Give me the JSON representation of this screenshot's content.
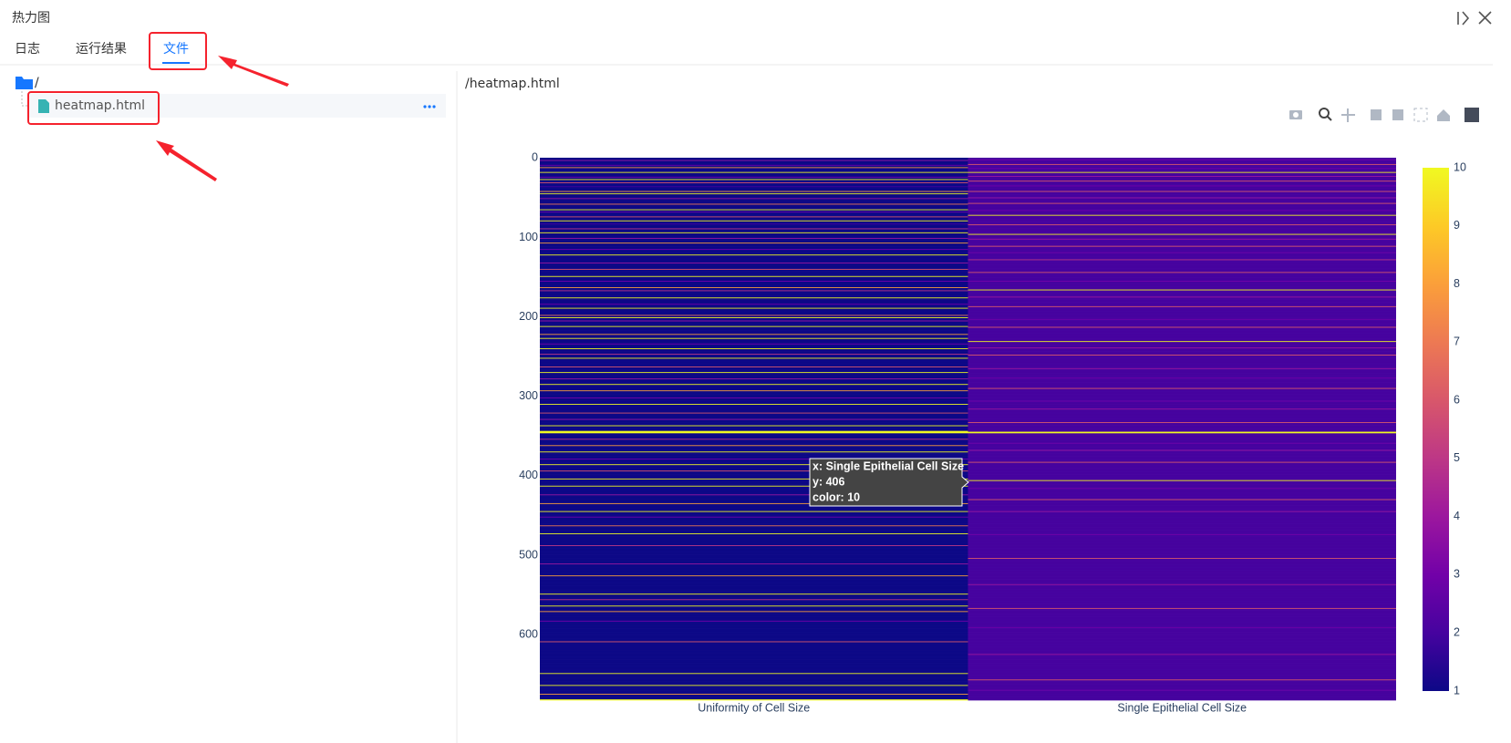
{
  "panel": {
    "title": "热力图",
    "tabs": [
      "日志",
      "运行结果",
      "文件"
    ]
  },
  "tree": {
    "root": "/",
    "files": [
      "heatmap.html"
    ]
  },
  "viewer": {
    "path": "/heatmap.html"
  },
  "chart_data": {
    "type": "heatmap",
    "categories": [
      "Uniformity of Cell Size",
      "Single Epithelial Cell Size"
    ],
    "ylim": [
      -0.5,
      682.5
    ],
    "yticks": [
      0,
      100,
      200,
      300,
      400,
      500,
      600
    ],
    "zlim": [
      1,
      10
    ],
    "zticks": [
      1,
      2,
      3,
      4,
      5,
      6,
      7,
      8,
      9,
      10
    ],
    "colorscale": [
      "#0d0887",
      "#46039f",
      "#7201a8",
      "#9c179e",
      "#bd3786",
      "#d8576b",
      "#ed7953",
      "#fb9f3a",
      "#fdca26",
      "#f0f921"
    ],
    "hover_label": [
      "x: Single Epithelial Cell Size",
      "y: 406",
      "color: 10"
    ],
    "z": [
      [
        1,
        1,
        1,
        4,
        1,
        1,
        1,
        1,
        1,
        3,
        1,
        1,
        8,
        1,
        1,
        1,
        1,
        1,
        10,
        1,
        1,
        1,
        1,
        1,
        3,
        1,
        1,
        10,
        1,
        1,
        1,
        6,
        1,
        1,
        1,
        1,
        2,
        1,
        1,
        1,
        1,
        1,
        8,
        1,
        1,
        10,
        1,
        1,
        1,
        1,
        1,
        4,
        1,
        1,
        1,
        1,
        1,
        1,
        7,
        1,
        1,
        1,
        1,
        1,
        1,
        10,
        1,
        1,
        3,
        1,
        1,
        1,
        1,
        1,
        6,
        1,
        1,
        1,
        1,
        10,
        1,
        1,
        1,
        2,
        1,
        1,
        1,
        1,
        1,
        5,
        1,
        1,
        1,
        1,
        10,
        1,
        1,
        1,
        1,
        1,
        1,
        4,
        1,
        1,
        1,
        1,
        1,
        8,
        1,
        1,
        1,
        1,
        1,
        1,
        1,
        3,
        1,
        1,
        1,
        1,
        1,
        1,
        10,
        1,
        1,
        1,
        1,
        1,
        1,
        1,
        1,
        1,
        4,
        1,
        1,
        1,
        1,
        1,
        1,
        1,
        6,
        1,
        1,
        1,
        1,
        1,
        1,
        1,
        1,
        10,
        1,
        1,
        1,
        1,
        1,
        3,
        1,
        1,
        1,
        1,
        1,
        1,
        1,
        8,
        1,
        1,
        1,
        5,
        1,
        1,
        1,
        1,
        1,
        1,
        1,
        1,
        10,
        1,
        1,
        1,
        1,
        1,
        1,
        1,
        3,
        1,
        1,
        1,
        1,
        10,
        1,
        1,
        1,
        1,
        1,
        1,
        1,
        1,
        7,
        1,
        1,
        10,
        1,
        1,
        1,
        4,
        1,
        1,
        1,
        1,
        1,
        1,
        10,
        1,
        1,
        1,
        1,
        1,
        1,
        1,
        1,
        1,
        8,
        1,
        1,
        1,
        1,
        10,
        1,
        1,
        1,
        1,
        1,
        1,
        3,
        1,
        1,
        1,
        1,
        1,
        10,
        1,
        1,
        1,
        1,
        1,
        1,
        5,
        1,
        1,
        1,
        1,
        10,
        1,
        1,
        1,
        1,
        1,
        1,
        1,
        1,
        1,
        1,
        6,
        1,
        1,
        1,
        1,
        1,
        1,
        10,
        1,
        1,
        1,
        1,
        1,
        1,
        1,
        4,
        1,
        1,
        1,
        1,
        1,
        1,
        10,
        1,
        1,
        1,
        1,
        1,
        1,
        1,
        8,
        1,
        1,
        1,
        1,
        1,
        1,
        1,
        1,
        3,
        1,
        1,
        1,
        1,
        1,
        1,
        1,
        10,
        1,
        1,
        1,
        1,
        1,
        1,
        1,
        1,
        1,
        1,
        6,
        1,
        1,
        1,
        1,
        1,
        1,
        1,
        4,
        1,
        1,
        1,
        1,
        1,
        1,
        1,
        10,
        1,
        1,
        1,
        1,
        1,
        1,
        10,
        10,
        10,
        1,
        1,
        1,
        1,
        1,
        1,
        1,
        5,
        1,
        1,
        1,
        1,
        1,
        1,
        1,
        8,
        1,
        1,
        1,
        1,
        1,
        1,
        1,
        10,
        1,
        1,
        1,
        1,
        1,
        1,
        1,
        1,
        3,
        1,
        1,
        1,
        1,
        1,
        1,
        10,
        1,
        1,
        1,
        1,
        1,
        1,
        1,
        6,
        1,
        1,
        1,
        1,
        1,
        1,
        1,
        1,
        1,
        10,
        1,
        1,
        1,
        1,
        1,
        1,
        1,
        1,
        10,
        1,
        1,
        1,
        1,
        1,
        1,
        1,
        1,
        1,
        1,
        4,
        1,
        1,
        1,
        1,
        1,
        1,
        1,
        1,
        1,
        1,
        8,
        1,
        1,
        1,
        1,
        1,
        1,
        1,
        1,
        1,
        10,
        1,
        1,
        1,
        1,
        1,
        1,
        3,
        1,
        1,
        1,
        1,
        1,
        1,
        1,
        1,
        1,
        1,
        7,
        1,
        1,
        1,
        1,
        1,
        1,
        1,
        1,
        1,
        10,
        1,
        1,
        1,
        1,
        1,
        1,
        1,
        1,
        1,
        1,
        1,
        1,
        1,
        1,
        5,
        1,
        1,
        1,
        1,
        1,
        1,
        1,
        1,
        1,
        1,
        1,
        1,
        1,
        1,
        1,
        1,
        1,
        1,
        1,
        1,
        1,
        1,
        4,
        1,
        1,
        1,
        1,
        1,
        1,
        1,
        1,
        1,
        1,
        1,
        1,
        1,
        1,
        8,
        1,
        1,
        1,
        1,
        1,
        1,
        1,
        1,
        1,
        1,
        1,
        1,
        1,
        1,
        1,
        1,
        1,
        1,
        1,
        1,
        1,
        1,
        10,
        1,
        1,
        1,
        1,
        1,
        1,
        5,
        1,
        1,
        1,
        1,
        1,
        1,
        1,
        10,
        1,
        1,
        1,
        1,
        1,
        1,
        8,
        1,
        1,
        1,
        1,
        1,
        1,
        1,
        1,
        1,
        1,
        1,
        3,
        1,
        1,
        1,
        1,
        1,
        1,
        1,
        1,
        1,
        1,
        1,
        1,
        1,
        1,
        1,
        1,
        1,
        1,
        1,
        1,
        1,
        1,
        1,
        1,
        1,
        6,
        1,
        1,
        1,
        1,
        1,
        1,
        1,
        1,
        1,
        1,
        1,
        1,
        1,
        1,
        1,
        1,
        1,
        1,
        1,
        1,
        1,
        1,
        1,
        1,
        1,
        1,
        1,
        1,
        1,
        1,
        1,
        1,
        1,
        1,
        1,
        1,
        1,
        1,
        1,
        10,
        1,
        1,
        1,
        1,
        1,
        1,
        1,
        1,
        1,
        1,
        1,
        1,
        1,
        1,
        10,
        1,
        1,
        1,
        1,
        1,
        1,
        1,
        1,
        1,
        1,
        8,
        1,
        1,
        1,
        1,
        1,
        1,
        10
      ],
      [
        2,
        2,
        3,
        2,
        2,
        2,
        2,
        2,
        6,
        2,
        2,
        2,
        2,
        3,
        2,
        2,
        2,
        2,
        10,
        2,
        2,
        2,
        2,
        4,
        2,
        2,
        2,
        2,
        2,
        6,
        2,
        2,
        2,
        2,
        2,
        3,
        2,
        2,
        2,
        2,
        2,
        2,
        6,
        2,
        2,
        2,
        2,
        2,
        2,
        2,
        4,
        2,
        2,
        2,
        2,
        2,
        2,
        6,
        2,
        2,
        2,
        2,
        2,
        2,
        2,
        2,
        3,
        2,
        2,
        2,
        2,
        2,
        10,
        2,
        2,
        2,
        2,
        2,
        2,
        2,
        2,
        2,
        2,
        2,
        6,
        2,
        2,
        2,
        2,
        2,
        2,
        2,
        2,
        2,
        2,
        2,
        10,
        2,
        2,
        2,
        2,
        2,
        4,
        2,
        2,
        2,
        2,
        2,
        2,
        2,
        2,
        6,
        2,
        2,
        2,
        2,
        2,
        2,
        2,
        3,
        2,
        2,
        2,
        2,
        2,
        2,
        2,
        2,
        5,
        2,
        2,
        2,
        2,
        2,
        2,
        2,
        2,
        2,
        2,
        2,
        2,
        2,
        2,
        2,
        6,
        2,
        2,
        2,
        2,
        2,
        2,
        2,
        2,
        2,
        2,
        3,
        2,
        2,
        2,
        2,
        2,
        2,
        2,
        2,
        2,
        2,
        10,
        2,
        2,
        2,
        2,
        2,
        2,
        2,
        2,
        4,
        2,
        2,
        2,
        2,
        2,
        2,
        2,
        2,
        2,
        2,
        2,
        6,
        2,
        2,
        2,
        2,
        2,
        2,
        2,
        2,
        2,
        2,
        2,
        2,
        2,
        2,
        2,
        3,
        2,
        2,
        2,
        2,
        2,
        2,
        2,
        2,
        2,
        6,
        2,
        2,
        2,
        2,
        2,
        2,
        2,
        2,
        2,
        2,
        2,
        2,
        2,
        2,
        2,
        2,
        2,
        10,
        2,
        2,
        2,
        2,
        2,
        2,
        2,
        4,
        2,
        2,
        2,
        2,
        2,
        2,
        2,
        2,
        6,
        2,
        2,
        2,
        2,
        2,
        2,
        2,
        2,
        2,
        2,
        2,
        2,
        2,
        2,
        2,
        2,
        4,
        2,
        2,
        2,
        2,
        2,
        2,
        2,
        2,
        2,
        2,
        2,
        3,
        2,
        2,
        2,
        2,
        2,
        2,
        2,
        2,
        2,
        2,
        2,
        2,
        6,
        2,
        2,
        2,
        2,
        2,
        2,
        2,
        2,
        2,
        2,
        2,
        2,
        2,
        2,
        2,
        3,
        2,
        2,
        2,
        2,
        2,
        2,
        2,
        2,
        2,
        4,
        2,
        2,
        2,
        2,
        2,
        2,
        2,
        2,
        2,
        2,
        2,
        2,
        2,
        2,
        2,
        2,
        6,
        2,
        2,
        2,
        2,
        2,
        2,
        2,
        2,
        2,
        2,
        2,
        10,
        10,
        2,
        2,
        2,
        2,
        2,
        2,
        2,
        2,
        2,
        2,
        2,
        2,
        3,
        2,
        2,
        2,
        2,
        2,
        2,
        2,
        2,
        4,
        2,
        2,
        2,
        2,
        2,
        2,
        2,
        2,
        2,
        2,
        2,
        2,
        2,
        2,
        6,
        2,
        2,
        2,
        2,
        2,
        2,
        2,
        2,
        2,
        2,
        2,
        2,
        2,
        2,
        2,
        2,
        2,
        2,
        2,
        2,
        2,
        2,
        10,
        2,
        2,
        2,
        2,
        2,
        2,
        2,
        2,
        2,
        3,
        2,
        2,
        2,
        2,
        2,
        2,
        2,
        2,
        2,
        2,
        2,
        2,
        2,
        6,
        2,
        2,
        2,
        2,
        2,
        2,
        2,
        2,
        2,
        2,
        2,
        2,
        2,
        2,
        4,
        2,
        2,
        2,
        2,
        2,
        2,
        2,
        2,
        2,
        2,
        2,
        2,
        2,
        2,
        2,
        2,
        2,
        2,
        2,
        2,
        2,
        2,
        2,
        2,
        2,
        2,
        2,
        2,
        3,
        2,
        2,
        2,
        2,
        2,
        2,
        2,
        2,
        2,
        2,
        2,
        2,
        2,
        2,
        2,
        2,
        2,
        2,
        2,
        2,
        2,
        2,
        2,
        2,
        2,
        2,
        2,
        2,
        2,
        6,
        2,
        2,
        2,
        2,
        2,
        2,
        2,
        2,
        2,
        2,
        2,
        2,
        2,
        2,
        2,
        2,
        2,
        2,
        2,
        2,
        2,
        2,
        2,
        2,
        2,
        2,
        2,
        2,
        2,
        2,
        2,
        2,
        4,
        2,
        2,
        2,
        2,
        2,
        2,
        2,
        2,
        2,
        2,
        2,
        2,
        2,
        2,
        2,
        2,
        2,
        2,
        2,
        2,
        2,
        2,
        2,
        2,
        2,
        2,
        2,
        2,
        2,
        6,
        2,
        2,
        2,
        2,
        2,
        2,
        2,
        2,
        2,
        2,
        2,
        2,
        2,
        2,
        2,
        2,
        2,
        2,
        2,
        2,
        2,
        2,
        2,
        3,
        2,
        2,
        2,
        2,
        2,
        2,
        2,
        2,
        2,
        2,
        2,
        2,
        2,
        2,
        2,
        2,
        2,
        2,
        2,
        2,
        2,
        2,
        2,
        2,
        2,
        2,
        2,
        2,
        2,
        2,
        2,
        2,
        2,
        4,
        2,
        2,
        2,
        2,
        2,
        2,
        2,
        2,
        2,
        2,
        2,
        2,
        2,
        2,
        2,
        2,
        2,
        2,
        2,
        2,
        2,
        2,
        2,
        2,
        2,
        2,
        2,
        2,
        2,
        2,
        2,
        6,
        2,
        2,
        2,
        2,
        2,
        2,
        2,
        2,
        2,
        2,
        2,
        2,
        3,
        2,
        2,
        2,
        2,
        2,
        2,
        2,
        2,
        2,
        2,
        2,
        2
      ]
    ]
  }
}
